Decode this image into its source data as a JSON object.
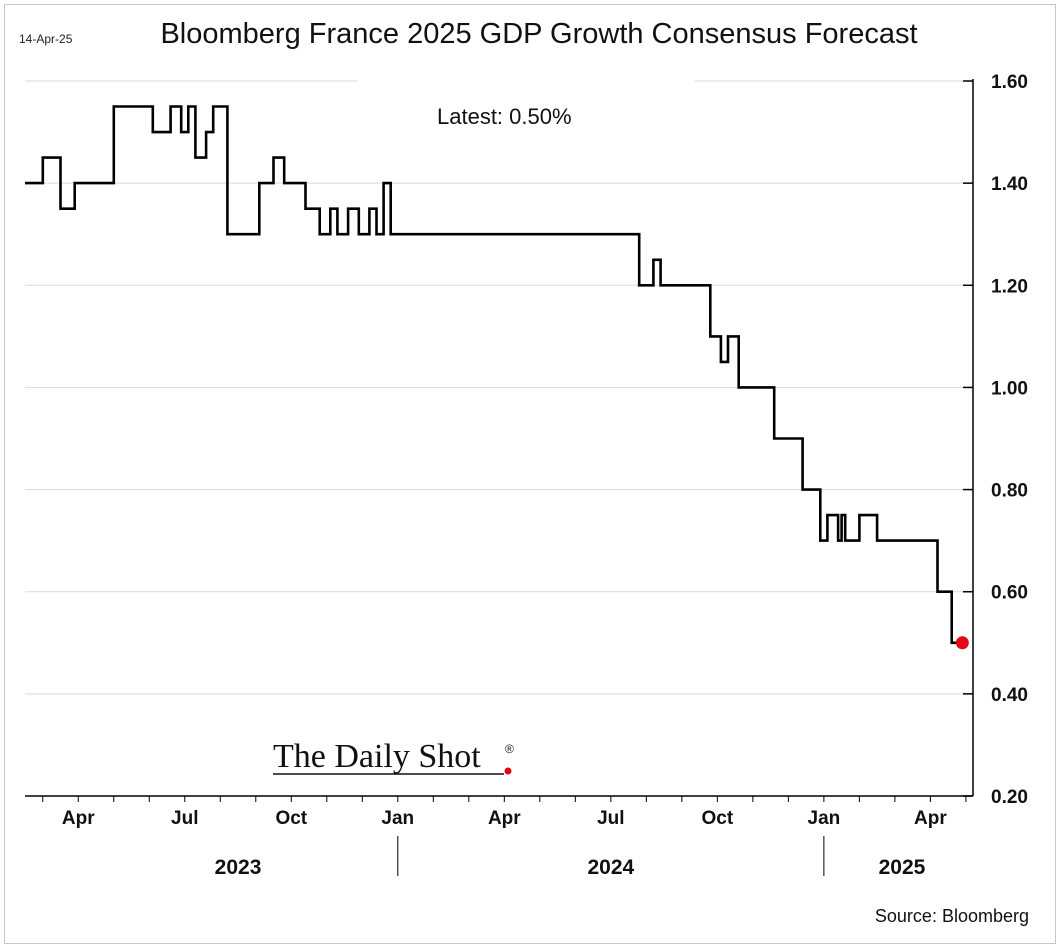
{
  "chart_data": {
    "type": "line",
    "title": "Bloomberg France 2025 GDP Growth Consensus Forecast",
    "date_label": "14-Apr-25",
    "annotation": "Latest:  0.50%",
    "source": "Source: Bloomberg",
    "watermark": "The Daily Shot",
    "watermark_mark": "®",
    "ylim": [
      0.2,
      1.6
    ],
    "yticks": [
      "1.60",
      "1.40",
      "1.20",
      "1.00",
      "0.80",
      "0.60",
      "0.40",
      "0.20"
    ],
    "ytick_values": [
      1.6,
      1.4,
      1.2,
      1.0,
      0.8,
      0.6,
      0.4,
      0.2
    ],
    "x_unit": "months since 2023-01-01",
    "xlim": [
      1.5,
      28.2
    ],
    "xticks": [
      {
        "label": "Apr",
        "value": 3.0
      },
      {
        "label": "Jul",
        "value": 6.0
      },
      {
        "label": "Oct",
        "value": 9.0
      },
      {
        "label": "Jan",
        "value": 12.0
      },
      {
        "label": "Apr",
        "value": 15.0
      },
      {
        "label": "Jul",
        "value": 18.0
      },
      {
        "label": "Oct",
        "value": 21.0
      },
      {
        "label": "Jan",
        "value": 24.0
      },
      {
        "label": "Apr",
        "value": 27.0
      }
    ],
    "years": [
      {
        "label": "2023",
        "value": 7.5
      },
      {
        "label": "2024",
        "value": 18.0
      },
      {
        "label": "2025",
        "value": 26.2
      }
    ],
    "year_separators": [
      12.0,
      24.0
    ],
    "series": [
      {
        "name": "France 2025 GDP Growth Consensus (%)",
        "step": true,
        "x": [
          1.5,
          2.0,
          2.5,
          2.9,
          3.2,
          4.0,
          4.5,
          5.1,
          5.6,
          5.9,
          6.1,
          6.3,
          6.6,
          6.8,
          7.2,
          7.4,
          8.1,
          8.5,
          8.8,
          9.4,
          9.8,
          10.1,
          10.3,
          10.6,
          10.9,
          11.2,
          11.4,
          11.6,
          11.8,
          12.0,
          14.0,
          16.0,
          18.0,
          18.8,
          19.2,
          19.4,
          19.7,
          20.2,
          20.8,
          21.0,
          21.1,
          21.3,
          21.6,
          22.3,
          22.6,
          23.0,
          23.4,
          23.9,
          24.1,
          24.3,
          24.4,
          24.5,
          24.6,
          25.0,
          25.5,
          26.2,
          27.0,
          27.2,
          27.6,
          27.9
        ],
        "y": [
          1.4,
          1.45,
          1.35,
          1.4,
          1.4,
          1.55,
          1.55,
          1.5,
          1.55,
          1.5,
          1.55,
          1.45,
          1.5,
          1.55,
          1.3,
          1.3,
          1.4,
          1.45,
          1.4,
          1.35,
          1.3,
          1.35,
          1.3,
          1.35,
          1.3,
          1.35,
          1.3,
          1.4,
          1.3,
          1.3,
          1.3,
          1.3,
          1.3,
          1.2,
          1.25,
          1.2,
          1.2,
          1.2,
          1.1,
          1.1,
          1.05,
          1.1,
          1.0,
          1.0,
          0.9,
          0.9,
          0.8,
          0.7,
          0.75,
          0.75,
          0.7,
          0.75,
          0.7,
          0.75,
          0.7,
          0.7,
          0.7,
          0.6,
          0.5,
          0.5
        ]
      }
    ],
    "latest_point": {
      "x": 27.9,
      "y": 0.5,
      "color": "#e30613"
    },
    "line_color": "#000000",
    "grid_color": "#d9d9d9"
  }
}
